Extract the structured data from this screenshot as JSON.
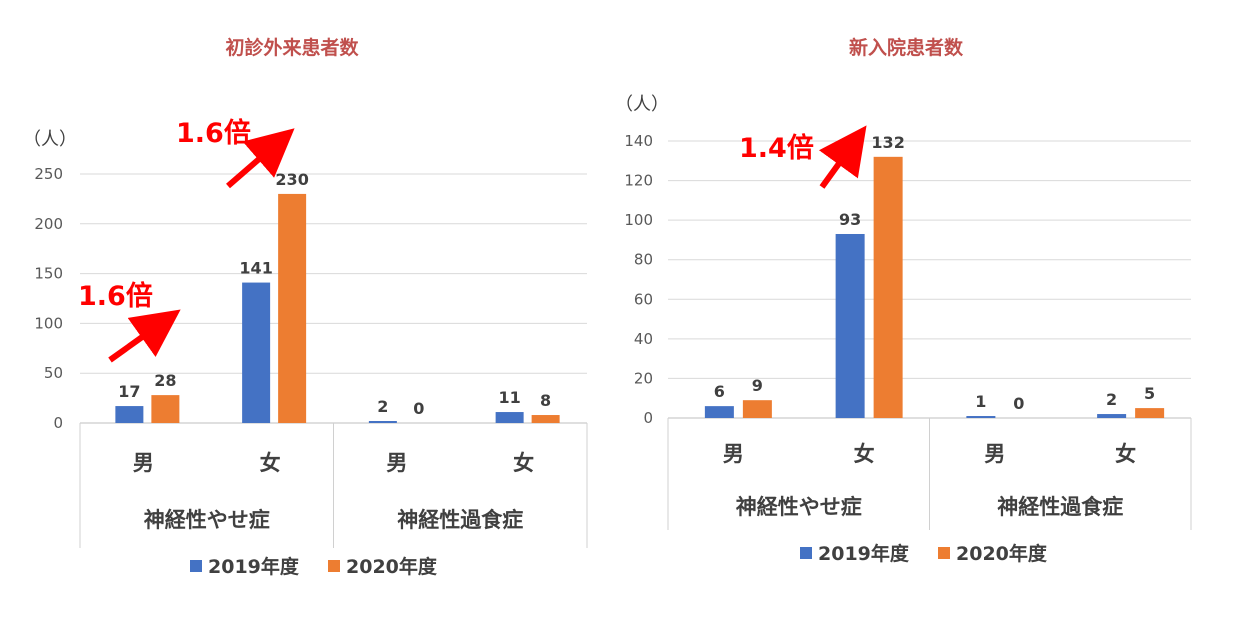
{
  "chart_data": [
    {
      "type": "bar",
      "title": "初診外来患者数",
      "ylabel": "（人）",
      "ylim": [
        0,
        250
      ],
      "yticks": [
        0,
        50,
        100,
        150,
        200,
        250
      ],
      "grid": true,
      "legend_position": "bottom",
      "categories": [
        "男",
        "女",
        "男",
        "女"
      ],
      "groups": [
        {
          "label": "神経性やせ症",
          "categories": [
            "男",
            "女"
          ]
        },
        {
          "label": "神経性過食症",
          "categories": [
            "男",
            "女"
          ]
        }
      ],
      "series": [
        {
          "name": "2019年度",
          "color": "#4472c4",
          "values": [
            17,
            141,
            2,
            11
          ]
        },
        {
          "name": "2020年度",
          "color": "#ed7d31",
          "values": [
            28,
            230,
            0,
            8
          ]
        }
      ],
      "annotations": [
        {
          "text": "1.6倍",
          "target_category": "男",
          "color": "#ff0000"
        },
        {
          "text": "1.6倍",
          "target_category": "女",
          "color": "#ff0000"
        }
      ]
    },
    {
      "type": "bar",
      "title": "新入院患者数",
      "ylabel": "（人）",
      "ylim": [
        0,
        140
      ],
      "yticks": [
        0,
        20,
        40,
        60,
        80,
        100,
        120,
        140
      ],
      "grid": true,
      "legend_position": "bottom",
      "categories": [
        "男",
        "女",
        "男",
        "女"
      ],
      "groups": [
        {
          "label": "神経性やせ症",
          "categories": [
            "男",
            "女"
          ]
        },
        {
          "label": "神経性過食症",
          "categories": [
            "男",
            "女"
          ]
        }
      ],
      "series": [
        {
          "name": "2019年度",
          "color": "#4472c4",
          "values": [
            6,
            93,
            1,
            2
          ]
        },
        {
          "name": "2020年度",
          "color": "#ed7d31",
          "values": [
            9,
            132,
            0,
            5
          ]
        }
      ],
      "annotations": [
        {
          "text": "1.4倍",
          "target_category": "女",
          "color": "#ff0000"
        }
      ]
    }
  ]
}
